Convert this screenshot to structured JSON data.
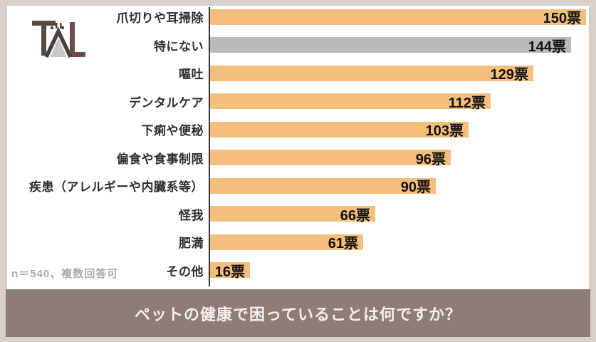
{
  "page": {
    "background": "#D8D0C8",
    "panel_background": "#FFFFFF"
  },
  "logo": {
    "alt": "TAL",
    "t_color": "#564A40",
    "a_color": "#45403A",
    "a_fill": "#CBC8C4",
    "l_color": "#6F4A4A"
  },
  "chart_data": {
    "type": "bar",
    "orientation": "horizontal",
    "title": "ペットの健康で困っていることは何ですか？",
    "note": "n＝540、複数回答可",
    "categories": [
      "爪切りや耳掃除",
      "特にない",
      "嘔吐",
      "デンタルケア",
      "下痢や便秘",
      "偏食や食事制限",
      "疾患（アレルギーや内臓系等）",
      "怪我",
      "肥満",
      "その他"
    ],
    "values": [
      150,
      144,
      129,
      112,
      103,
      96,
      90,
      66,
      61,
      16
    ],
    "value_labels": [
      "150票",
      "144票",
      "129票",
      "112票",
      "103票",
      "96票",
      "90票",
      "66票",
      "61票",
      "16票"
    ],
    "bar_colors": [
      "#F4BF7C",
      "#B9B9B9",
      "#F4BF7C",
      "#F4BF7C",
      "#F4BF7C",
      "#F4BF7C",
      "#F4BF7C",
      "#F4BF7C",
      "#F4BF7C",
      "#F4BF7C"
    ],
    "xlim": [
      0,
      150
    ],
    "axis_color": "#3A3A3A",
    "default_bar_color": "#F4BF7C",
    "muted_bar_color": "#B9B9B9",
    "legend": "none",
    "grid": "off"
  },
  "footer": {
    "title_bar_color": "#8E7C78",
    "title_text_color": "#F5F0ED"
  }
}
